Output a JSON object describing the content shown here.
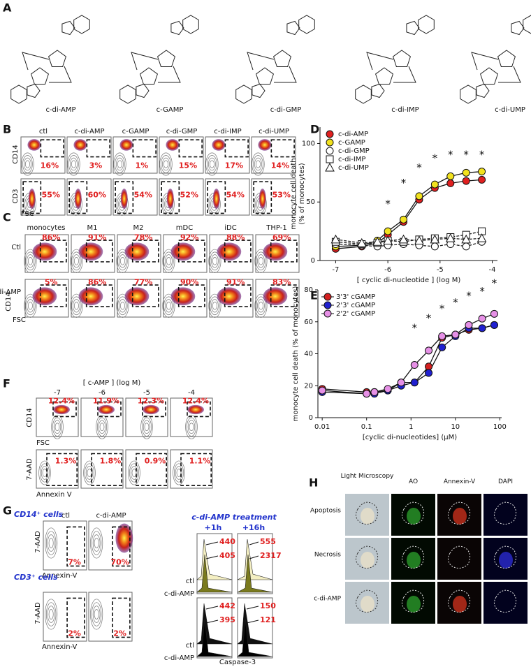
{
  "panel_labels": [
    "A",
    "B",
    "C",
    "D",
    "E",
    "F",
    "G",
    "H"
  ],
  "panel_a": {
    "structures": [
      "c-di-AMP",
      "c-GAMP",
      "c-di-GMP",
      "c-di-IMP",
      "c-di-UMP"
    ]
  },
  "panel_b": {
    "columns": [
      "ctl",
      "c-di-AMP",
      "c-GAMP",
      "c-di-GMP",
      "c-di-IMP",
      "c-di-UMP"
    ],
    "x_label": "FSC",
    "rows": [
      {
        "y_label": "CD14",
        "percents": [
          "16%",
          "3%",
          "1%",
          "15%",
          "17%",
          "14%"
        ]
      },
      {
        "y_label": "CD3",
        "percents": [
          "55%",
          "60%",
          "54%",
          "52%",
          "54%",
          "53%"
        ]
      }
    ]
  },
  "panel_c": {
    "columns": [
      "monocytes",
      "M1",
      "M2",
      "mDC",
      "iDC",
      "THP-1"
    ],
    "y_label": "CD14",
    "x_label": "FSC",
    "rows": [
      {
        "name": "Ctl",
        "percents": [
          "86%",
          "91%",
          "78%",
          "92%",
          "88%",
          "69%"
        ]
      },
      {
        "name": "c-di-AMP",
        "percents": [
          "5%",
          "86%",
          "77%",
          "90%",
          "91%",
          "83%"
        ]
      }
    ]
  },
  "panel_f": {
    "title": "[ c-AMP ] (log M)",
    "columns": [
      "-7",
      "-6",
      "-5",
      "-4"
    ],
    "rows": [
      {
        "y_label": "CD14",
        "x_label": "FSC",
        "percents": [
          "12.4%",
          "11.9%",
          "12.3%",
          "12.4%"
        ]
      },
      {
        "y_label": "7-AAD",
        "x_label": "Annexin V",
        "percents": [
          "1.3%",
          "1.8%",
          "0.9%",
          "1.1%"
        ]
      }
    ]
  },
  "panel_g": {
    "columns": [
      "ctl",
      "c-di-AMP"
    ],
    "groups": [
      {
        "title": "CD14⁺ cells",
        "y_label": "7-AAD",
        "x_label": "Annexin-V",
        "percents": [
          "7%",
          "70%"
        ]
      },
      {
        "title": "CD3⁺ cells",
        "y_label": "7-AAD",
        "x_label": "Annexin-V",
        "percents": [
          "2%",
          "2%"
        ]
      }
    ],
    "histograms": {
      "title": "c-di-AMP treatment",
      "times": [
        "+1h",
        "+16h"
      ],
      "row_labels": [
        "ctl",
        "c-di-AMP"
      ],
      "x_label": "Caspase-3",
      "rows": [
        [
          [
            "440",
            "405"
          ],
          [
            "555",
            "2317"
          ]
        ],
        [
          [
            "442",
            "395"
          ],
          [
            "150",
            "121"
          ]
        ]
      ]
    }
  },
  "panel_h": {
    "columns": [
      "Light Microscopy",
      "AO",
      "Annexin-V",
      "DAPI"
    ],
    "rows": [
      "Apoptosis",
      "Necrosis",
      "c-di-AMP"
    ]
  },
  "chart_data": [
    {
      "type": "line",
      "y_label": [
        "monocyte cell death",
        "(% of monocytes)"
      ],
      "x_label": "[ cyclic di-nucleotide ] (log M)",
      "x": [
        -7,
        -6.5,
        -6.2,
        -6,
        -5.7,
        -5.4,
        -5.1,
        -4.8,
        -4.5,
        -4.2
      ],
      "xlim": [
        -7.3,
        -3.9
      ],
      "ylim": [
        0,
        114
      ],
      "xticks": [
        -7,
        -6,
        -5,
        -4
      ],
      "yticks": [
        0,
        50,
        100
      ],
      "legend": "upper left",
      "series": [
        {
          "name": "c-di-AMP",
          "color": "#e02020",
          "marker": "circle",
          "values": [
            10,
            12,
            15,
            22,
            33,
            52,
            62,
            66,
            68,
            69
          ]
        },
        {
          "name": "c-GAMP",
          "color": "#f2e21e",
          "marker": "circle",
          "values": [
            12,
            13,
            17,
            25,
            35,
            55,
            65,
            72,
            75,
            76
          ]
        },
        {
          "name": "c-di-GMP",
          "color": "#ffffff",
          "marker": "circle",
          "values": [
            14,
            13,
            12,
            13,
            14,
            13,
            12,
            14,
            12,
            16
          ]
        },
        {
          "name": "c-di-IMP",
          "color": "#ffffff",
          "marker": "square",
          "values": [
            16,
            14,
            15,
            17,
            16,
            18,
            19,
            20,
            22,
            25
          ]
        },
        {
          "name": "c-di-UMP",
          "color": "#ffffff",
          "marker": "triangle",
          "values": [
            18,
            15,
            16,
            17,
            18,
            17,
            18,
            19,
            18,
            19
          ]
        }
      ],
      "annotations": [
        {
          "x": -6,
          "y": 48,
          "text": "*"
        },
        {
          "x": -5.7,
          "y": 66,
          "text": "*"
        },
        {
          "x": -5.4,
          "y": 79,
          "text": "*"
        },
        {
          "x": -5.1,
          "y": 87,
          "text": "*"
        },
        {
          "x": -4.8,
          "y": 90,
          "text": "*"
        },
        {
          "x": -4.5,
          "y": 90,
          "text": "*"
        },
        {
          "x": -4.2,
          "y": 90,
          "text": "*"
        }
      ]
    },
    {
      "type": "line",
      "x_scale": "log",
      "y_label": [
        "monocyte cell death (% of monocytes)"
      ],
      "x_label": "[cyclic di-nucleotides] (µM)",
      "x": [
        0.01,
        0.1,
        0.15,
        0.3,
        0.6,
        1.2,
        2.5,
        5,
        10,
        20,
        40,
        75
      ],
      "xlim": [
        0.008,
        110
      ],
      "ylim": [
        0,
        80
      ],
      "xticks": [
        0.01,
        0.1,
        1,
        10,
        100
      ],
      "yticks": [
        0,
        20,
        40,
        60,
        80
      ],
      "legend": "upper left",
      "series": [
        {
          "name": "3'3' cGAMP",
          "color": "#d42020",
          "marker": "circle",
          "values": [
            18,
            16,
            16,
            17,
            22,
            22,
            32,
            50,
            52,
            55,
            56,
            58
          ]
        },
        {
          "name": "2'3' cGAMP",
          "color": "#2020d0",
          "marker": "circle",
          "values": [
            16,
            15,
            15,
            17,
            20,
            22,
            28,
            44,
            51,
            56,
            56,
            58
          ]
        },
        {
          "name": "2'2' cGAMP",
          "color": "#e690e6",
          "marker": "circle",
          "values": [
            17,
            15,
            16,
            18,
            22,
            33,
            42,
            51,
            52,
            58,
            62,
            65
          ]
        }
      ],
      "annotations": [
        {
          "x": 1.2,
          "y": 56,
          "text": "*"
        },
        {
          "x": 2.5,
          "y": 62,
          "text": "*"
        },
        {
          "x": 5,
          "y": 68,
          "text": "*"
        },
        {
          "x": 10,
          "y": 72,
          "text": "*"
        },
        {
          "x": 20,
          "y": 76,
          "text": "*"
        },
        {
          "x": 40,
          "y": 79,
          "text": "*"
        },
        {
          "x": 75,
          "y": 84,
          "text": "*"
        }
      ]
    }
  ]
}
